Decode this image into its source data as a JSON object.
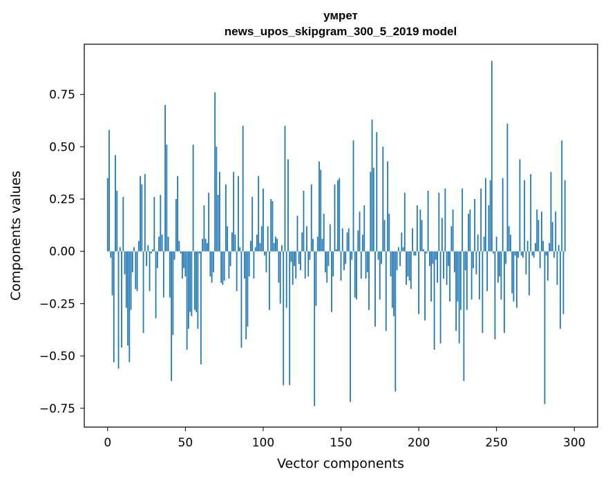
{
  "chart_data": {
    "type": "bar",
    "title": "умрет",
    "subtitle": "news_upos_skipgram_300_5_2019 model",
    "xlabel": "Vector components",
    "ylabel": "Components values",
    "xlim": [
      -15,
      315
    ],
    "ylim": [
      -0.84,
      0.99
    ],
    "xticks": [
      0,
      50,
      100,
      150,
      200,
      250,
      300
    ],
    "yticks": [
      -0.75,
      -0.5,
      -0.25,
      0.0,
      0.25,
      0.5,
      0.75
    ],
    "xtick_labels": [
      "0",
      "50",
      "100",
      "150",
      "200",
      "250",
      "300"
    ],
    "ytick_labels": [
      "−0.75",
      "−0.50",
      "−0.25",
      "0.00",
      "0.25",
      "0.50",
      "0.75"
    ],
    "bar_color": "#1f77b4",
    "grid": false,
    "values": [
      0.35,
      0.58,
      -0.03,
      -0.21,
      -0.53,
      0.46,
      0.29,
      -0.56,
      0.02,
      -0.46,
      0.26,
      -0.11,
      -0.27,
      -0.45,
      -0.53,
      -0.28,
      -0.1,
      0.02,
      -0.18,
      -0.19,
      0.05,
      0.36,
      0.32,
      -0.39,
      0.37,
      -0.07,
      0.03,
      -0.19,
      -0.01,
      0.01,
      0.26,
      -0.32,
      -0.08,
      0.07,
      0.27,
      0.08,
      -0.22,
      0.7,
      0.51,
      0.07,
      -0.22,
      -0.62,
      -0.4,
      -0.04,
      0.25,
      0.36,
      0.05,
      -0.01,
      -0.13,
      -0.08,
      -0.12,
      -0.47,
      -0.37,
      -0.29,
      -0.31,
      0.51,
      -0.28,
      -0.29,
      -0.37,
      -0.01,
      -0.54,
      0.06,
      0.22,
      0.06,
      0.04,
      0.28,
      -0.12,
      -0.15,
      -0.1,
      0.76,
      0.5,
      0.27,
      0.38,
      -0.15,
      -0.16,
      -0.14,
      0.32,
      0.12,
      -0.13,
      -0.07,
      0.09,
      0.38,
      0.08,
      -0.19,
      0.36,
      0.02,
      -0.46,
      0.6,
      -0.13,
      -0.42,
      -0.36,
      -0.12,
      0.05,
      0.26,
      -0.13,
      0.02,
      0.08,
      0.36,
      0.04,
      0.12,
      0.3,
      -0.02,
      -0.1,
      0.12,
      -0.28,
      0.25,
      0.24,
      0.04,
      0.07,
      0.06,
      -0.15,
      -0.25,
      0.03,
      -0.64,
      0.6,
      -0.27,
      0.44,
      -0.64,
      -0.05,
      -0.16,
      -0.07,
      -0.13,
      0.17,
      -0.06,
      -0.09,
      0.09,
      0.29,
      -0.13,
      0.12,
      -0.12,
      -0.04,
      0.32,
      0.06,
      -0.74,
      -0.26,
      0.07,
      0.43,
      0.39,
      0.06,
      0.18,
      -0.1,
      -0.15,
      -0.07,
      0.13,
      -0.29,
      -0.12,
      0.32,
      0.01,
      0.34,
      0.35,
      -0.14,
      0.11,
      -0.09,
      -0.06,
      0.09,
      0.11,
      -0.72,
      -0.04,
      0.53,
      -0.22,
      -0.23,
      0.1,
      0.19,
      -0.13,
      0.08,
      0.22,
      -0.13,
      -0.1,
      -0.28,
      0.38,
      0.63,
      0.4,
      -0.36,
      0.57,
      -0.04,
      -0.23,
      -0.06,
      0.5,
      0.15,
      -0.38,
      0.43,
      0.18,
      -0.12,
      -0.27,
      -0.31,
      -0.67,
      -0.09,
      0.02,
      -0.07,
      0.09,
      0.02,
      0.28,
      -0.16,
      -0.12,
      -0.14,
      -0.18,
      0.11,
      -0.02,
      -0.02,
      0.22,
      -0.3,
      0.2,
      0.15,
      0.01,
      -0.33,
      -0.01,
      0.29,
      -0.07,
      -0.24,
      -0.06,
      -0.47,
      -0.04,
      -0.15,
      0.28,
      -0.44,
      0.16,
      -0.13,
      0.3,
      -0.16,
      -0.07,
      -0.24,
      0.12,
      0.2,
      -0.1,
      -0.38,
      -0.24,
      -0.44,
      -0.28,
      0.3,
      -0.62,
      -0.09,
      -0.28,
      0.18,
      0.2,
      -0.23,
      -0.08,
      0.25,
      -0.11,
      0.08,
      -0.23,
      0.3,
      -0.39,
      0.07,
      0.35,
      -0.19,
      0.22,
      0.34,
      0.91,
      -0.01,
      -0.42,
      0.07,
      -0.15,
      -0.12,
      -0.23,
      0.35,
      -0.39,
      -0.06,
      0.61,
      0.12,
      0.08,
      -0.2,
      -0.24,
      -0.02,
      -0.27,
      -0.03,
      0.44,
      -0.02,
      -0.03,
      0.34,
      -0.11,
      0.05,
      -0.21,
      0.37,
      -0.02,
      -0.03,
      0.04,
      0.2,
      0.15,
      -0.08,
      0.19,
      0.05,
      -0.73,
      -0.02,
      -0.14,
      0.04,
      0.38,
      0.14,
      -0.03,
      0.19,
      -0.16,
      0.03,
      -0.37,
      0.53,
      -0.3,
      0.34
    ]
  }
}
